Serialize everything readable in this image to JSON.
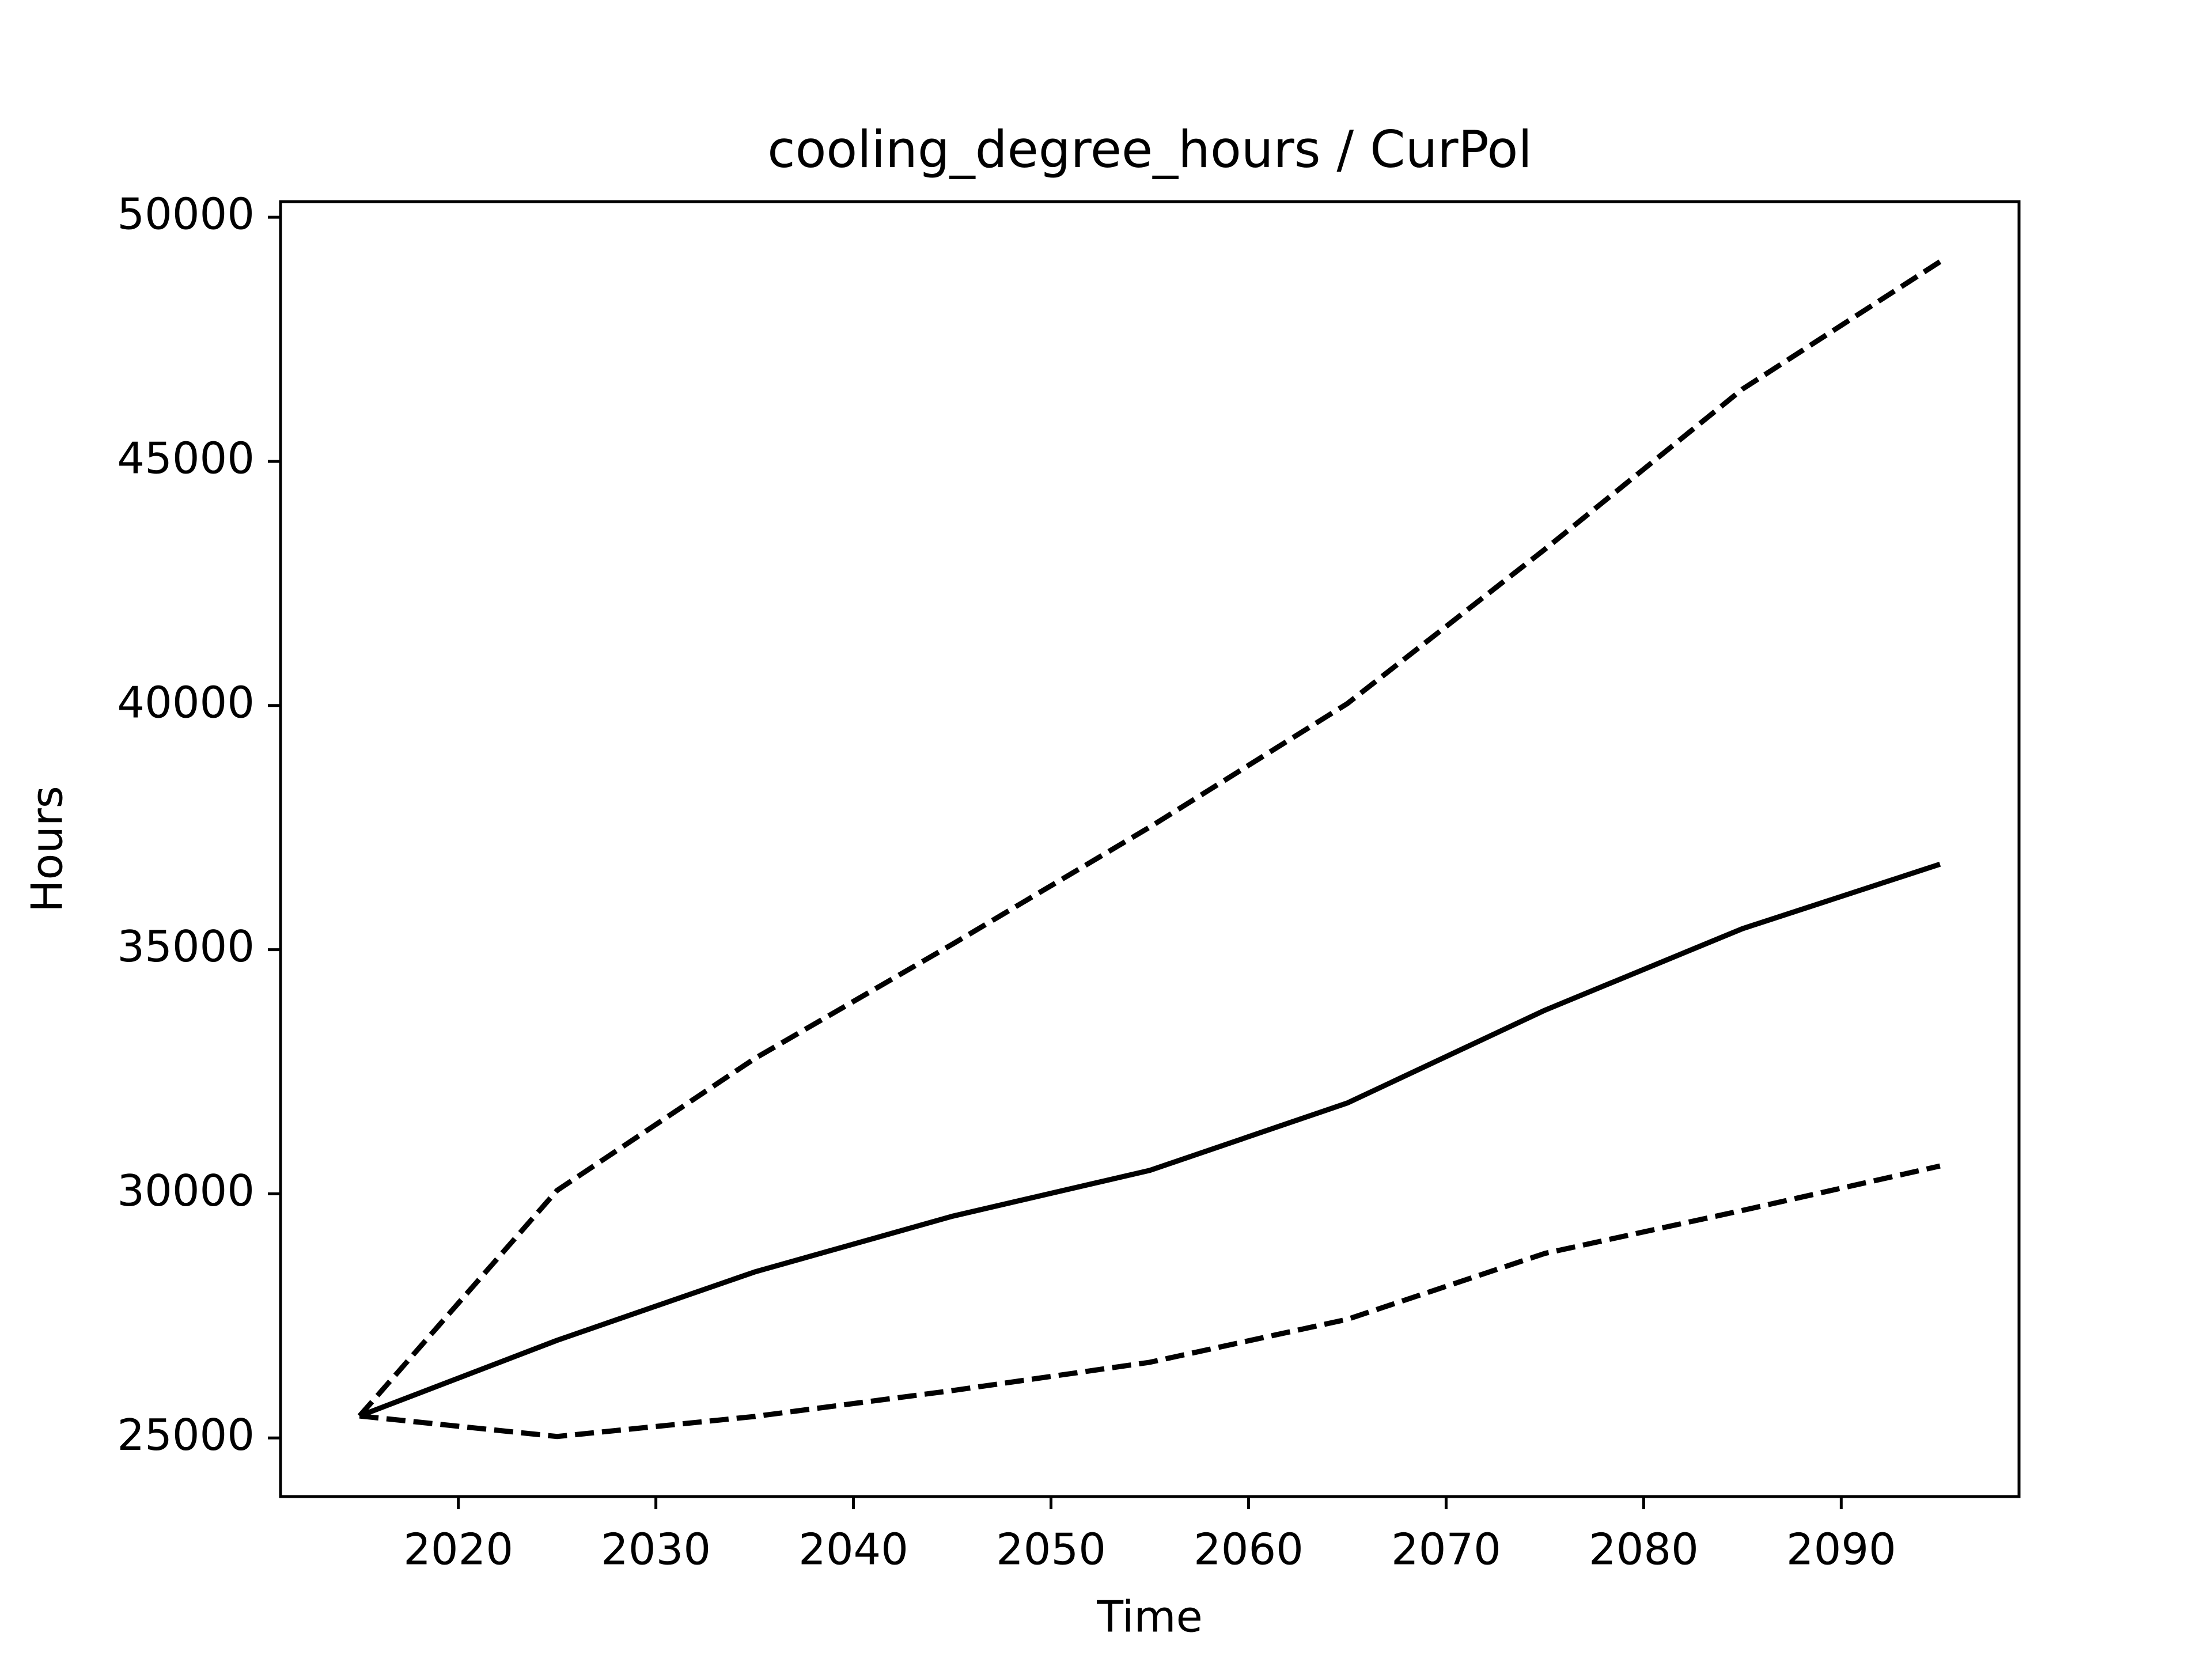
{
  "chart_data": {
    "type": "line",
    "title": "cooling_degree_hours / CurPol",
    "x_label": "Time",
    "y_label": "Hours",
    "x": [
      2015,
      2025,
      2035,
      2045,
      2055,
      2065,
      2075,
      2085,
      2095
    ],
    "series": [
      {
        "color": "#000000",
        "dashed": false,
        "values": [
          25450,
          27000,
          28400,
          29540,
          30480,
          31860,
          33760,
          35430,
          36750
        ]
      },
      {
        "color": "#000000",
        "dashed": true,
        "values": [
          25450,
          30070,
          32770,
          35110,
          37510,
          40040,
          43200,
          46480,
          49090
        ]
      },
      {
        "color": "#000000",
        "dashed": true,
        "values": [
          25450,
          25030,
          25440,
          25970,
          26550,
          27430,
          28780,
          29660,
          30570
        ]
      }
    ],
    "xlim": [
      2011,
      2099
    ],
    "ylim": [
      23800,
      50320
    ],
    "xticks": [
      2020,
      2030,
      2040,
      2050,
      2060,
      2070,
      2080,
      2090
    ],
    "yticks": [
      25000,
      30000,
      35000,
      40000,
      45000,
      50000
    ],
    "grid": false
  }
}
